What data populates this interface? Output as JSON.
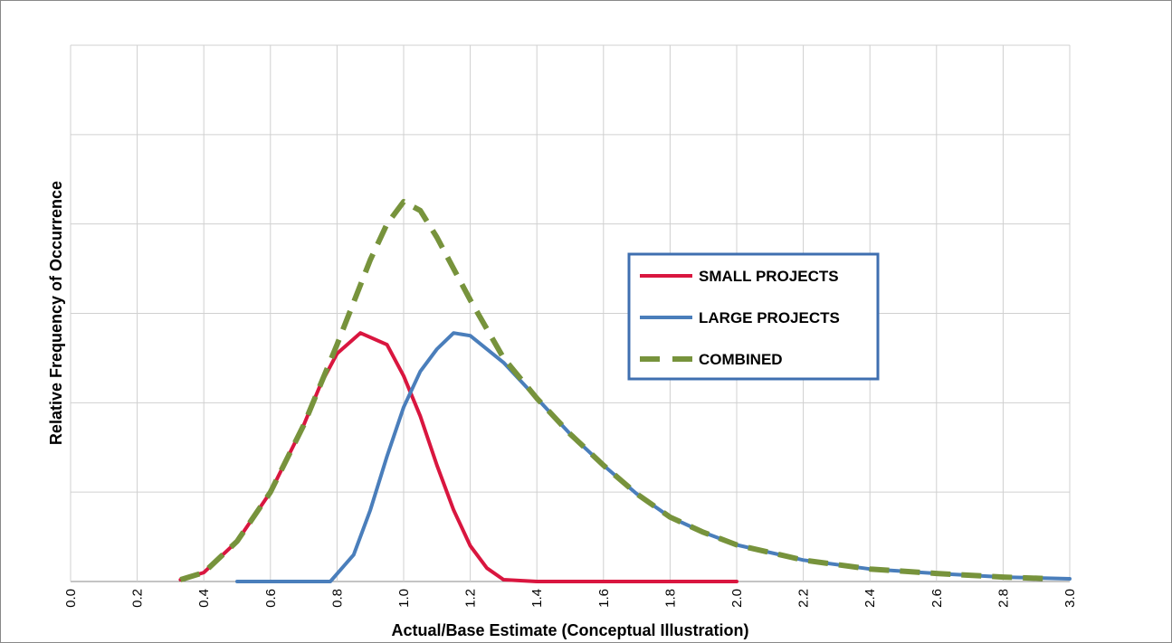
{
  "chart_data": {
    "type": "line",
    "xlabel": "Actual/Base Estimate (Conceptual Illustration)",
    "ylabel": "Relative Frequency of Occurrence",
    "xlim": [
      0,
      3
    ],
    "ylim": [
      0,
      6
    ],
    "xticks": [
      {
        "value": 0,
        "label": "0.0"
      },
      0.2,
      0.4,
      0.6,
      0.8,
      {
        "value": 1,
        "label": "1.0"
      },
      1.2,
      1.4,
      1.6,
      1.8,
      {
        "value": 2,
        "label": "2.0"
      },
      2.2,
      2.4,
      2.6,
      2.8,
      {
        "value": 3,
        "label": "3.0"
      }
    ],
    "yticks": [
      0,
      1,
      2,
      3,
      4,
      5,
      6
    ],
    "grid": true,
    "series": [
      {
        "name": "SMALL PROJECTS",
        "color": "#d9163f",
        "dash": false,
        "x": [
          0.33,
          0.4,
          0.5,
          0.6,
          0.7,
          0.75,
          0.8,
          0.87,
          0.95,
          1.0,
          1.05,
          1.1,
          1.15,
          1.2,
          1.25,
          1.3,
          1.4,
          2.0
        ],
        "values": [
          0.02,
          0.1,
          0.45,
          1.0,
          1.75,
          2.2,
          2.55,
          2.78,
          2.65,
          2.3,
          1.85,
          1.3,
          0.8,
          0.4,
          0.15,
          0.02,
          0,
          0
        ]
      },
      {
        "name": "LARGE PROJECTS",
        "color": "#4a7ebb",
        "dash": false,
        "x": [
          0.5,
          0.78,
          0.85,
          0.9,
          0.95,
          1.0,
          1.05,
          1.1,
          1.15,
          1.2,
          1.3,
          1.4,
          1.5,
          1.6,
          1.7,
          1.8,
          1.9,
          2.0,
          2.2,
          2.4,
          2.6,
          2.8,
          3.0
        ],
        "values": [
          0,
          0,
          0.3,
          0.8,
          1.4,
          1.95,
          2.35,
          2.6,
          2.78,
          2.75,
          2.45,
          2.05,
          1.65,
          1.3,
          0.98,
          0.72,
          0.55,
          0.41,
          0.24,
          0.14,
          0.09,
          0.05,
          0.03
        ]
      },
      {
        "name": "COMBINED",
        "color": "#77933c",
        "dash": true,
        "x": [
          0.33,
          0.4,
          0.5,
          0.6,
          0.7,
          0.8,
          0.9,
          0.95,
          1.0,
          1.05,
          1.1,
          1.2,
          1.3,
          1.4,
          1.5,
          1.6,
          1.7,
          1.8,
          1.9,
          2.0,
          2.2,
          2.4,
          2.6,
          2.8,
          2.95
        ],
        "values": [
          0.02,
          0.1,
          0.45,
          1.0,
          1.75,
          2.65,
          3.6,
          4.0,
          4.25,
          4.15,
          3.85,
          3.15,
          2.5,
          2.05,
          1.65,
          1.3,
          0.98,
          0.72,
          0.55,
          0.41,
          0.24,
          0.14,
          0.09,
          0.05,
          0.03
        ]
      }
    ]
  }
}
